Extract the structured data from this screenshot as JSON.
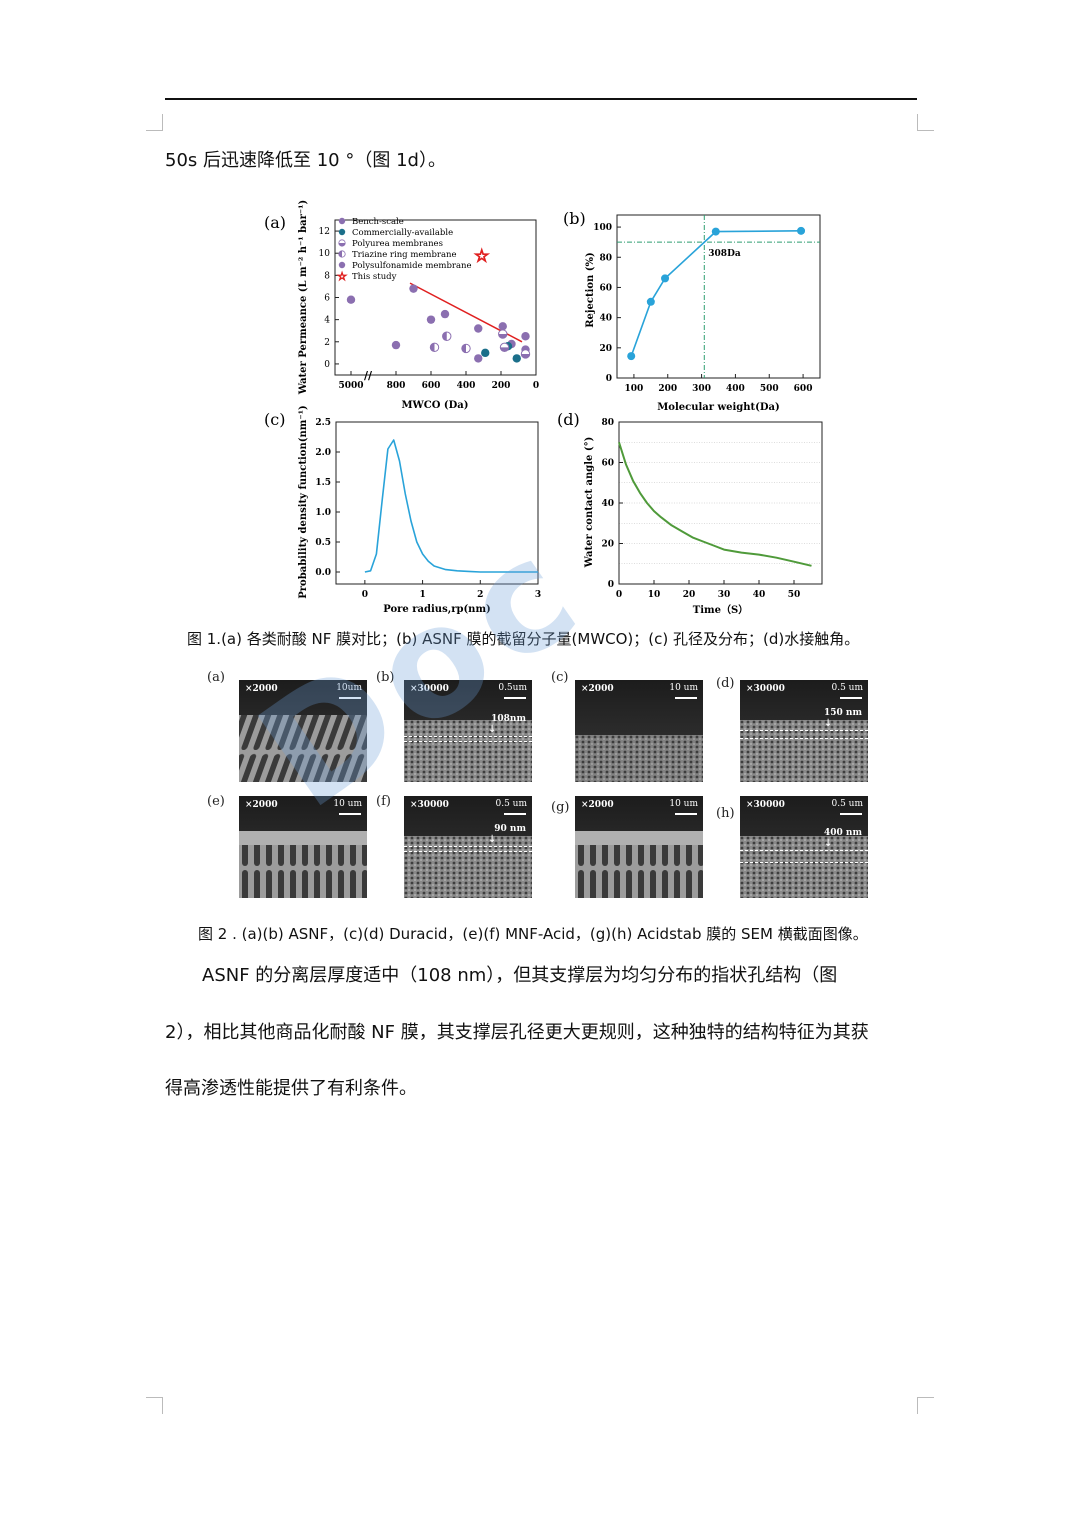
{
  "header_text": "50s 后迅速降低至 10 °（图 1d）。",
  "figure1": {
    "panel_labels": [
      "(a)",
      "(b)",
      "(c)",
      "(d)"
    ],
    "caption": "图 1.(a) 各类耐酸 NF 膜对比；(b) ASNF 膜的截留分子量(MWCO)；(c) 孔径及分布；(d)水接触角。"
  },
  "figure2": {
    "panels": [
      {
        "label": "(a)",
        "mag": "×2000",
        "scale": "10um",
        "annotation": ""
      },
      {
        "label": "(b)",
        "mag": "×30000",
        "scale": "0.5um",
        "annotation": "108nm"
      },
      {
        "label": "(c)",
        "mag": "×2000",
        "scale": "10 um",
        "annotation": ""
      },
      {
        "label": "(d)",
        "mag": "×30000",
        "scale": "0.5 um",
        "annotation": "150 nm"
      },
      {
        "label": "(e)",
        "mag": "×2000",
        "scale": "10 um",
        "annotation": ""
      },
      {
        "label": "(f)",
        "mag": "×30000",
        "scale": "0.5 um",
        "annotation": "90 nm"
      },
      {
        "label": "(g)",
        "mag": "×2000",
        "scale": "10 um",
        "annotation": ""
      },
      {
        "label": "(h)",
        "mag": "×30000",
        "scale": "0.5 um",
        "annotation": "400 nm"
      }
    ],
    "caption": "图 2 . (a)(b) ASNF，(c)(d) Duracid，(e)(f) MNF-Acid，(g)(h) Acidstab 膜的 SEM 横截面图像。"
  },
  "body_lines": [
    "ASNF 的分离层厚度适中（108 nm），但其支撑层为均匀分布的指状孔结构（图",
    "2），相比其他商品化耐酸 NF 膜，其支撑层孔径更大更规则，这种独特的结构特征为其获",
    "得高渗透性能提供了有利条件。"
  ],
  "watermark": "Doc",
  "chart_data": [
    {
      "type": "scatter",
      "panel": "(a)",
      "xlabel": "MWCO  (Da)",
      "ylabel": "Water Permeance (L m⁻² h⁻¹ bar⁻¹)",
      "x_tick_labels": [
        "5000",
        "800",
        "600",
        "400",
        "200",
        "0"
      ],
      "y_ticks": [
        0,
        2,
        4,
        6,
        8,
        10,
        12
      ],
      "ylim": [
        -1,
        13
      ],
      "legend_position": "top-left",
      "legend": [
        "Bench-scale",
        "Commercially-available",
        "Polyurea membranes",
        "Triazine ring membrane",
        "Polysulfonamide membrane",
        "This study"
      ],
      "series": [
        {
          "name": "Bench-scale",
          "color": "#8b6fb0",
          "points": [
            [
              5000,
              5.8
            ],
            [
              800,
              1.7
            ],
            [
              600,
              4.0
            ],
            [
              520,
              4.5
            ],
            [
              330,
              3.2
            ],
            [
              330,
              0.5
            ],
            [
              190,
              3.4
            ],
            [
              140,
              1.8
            ],
            [
              60,
              2.5
            ],
            [
              60,
              1.3
            ]
          ]
        },
        {
          "name": "Commercially-available",
          "color": "#1b6f8a",
          "points": [
            [
              290,
              1.0
            ],
            [
              160,
              1.6
            ],
            [
              110,
              0.5
            ]
          ]
        },
        {
          "name": "Polyurea membranes",
          "color": "#8b6fb0",
          "points": [
            [
              190,
              2.7
            ],
            [
              180,
              1.5
            ],
            [
              60,
              0.9
            ]
          ]
        },
        {
          "name": "Triazine ring membrane",
          "color": "#8b6fb0",
          "points": [
            [
              580,
              1.5
            ],
            [
              510,
              2.5
            ],
            [
              400,
              1.4
            ]
          ]
        },
        {
          "name": "Polysulfonamide membrane",
          "color": "#8b6fb0",
          "points": [
            [
              700,
              6.8
            ]
          ]
        },
        {
          "name": "This study",
          "color": "#e02020",
          "points": [
            [
              310,
              9.8
            ]
          ]
        }
      ],
      "trend_line": {
        "color": "#e02020",
        "from": [
          720,
          7.3
        ],
        "to": [
          80,
          2.0
        ]
      }
    },
    {
      "type": "line",
      "panel": "(b)",
      "xlabel": "Molecular weight(Da)",
      "ylabel": "Rejection (%)",
      "x_ticks": [
        100,
        200,
        300,
        400,
        500,
        600
      ],
      "y_ticks": [
        0,
        20,
        40,
        60,
        80,
        100
      ],
      "xlim": [
        50,
        650
      ],
      "ylim": [
        0,
        108
      ],
      "color": "#29a3d9",
      "x": [
        92,
        150,
        192,
        342,
        594
      ],
      "y": [
        14.5,
        50.5,
        66,
        97,
        97.5
      ],
      "reference": {
        "x": 308,
        "y": 90,
        "label": "308Da"
      }
    },
    {
      "type": "line",
      "panel": "(c)",
      "xlabel": "Pore radius,rp(nm)",
      "ylabel": "Probability density function(nm⁻¹)",
      "x_ticks": [
        0,
        1,
        2,
        3
      ],
      "y_ticks": [
        0.0,
        0.5,
        1.0,
        1.5,
        2.0,
        2.5
      ],
      "xlim": [
        -0.5,
        3
      ],
      "ylim": [
        -0.2,
        2.5
      ],
      "color": "#29a3d9",
      "x": [
        0.0,
        0.1,
        0.2,
        0.3,
        0.4,
        0.5,
        0.6,
        0.7,
        0.8,
        0.9,
        1.0,
        1.1,
        1.2,
        1.4,
        1.6,
        1.8,
        2.0,
        2.5,
        3.0
      ],
      "y": [
        0.0,
        0.02,
        0.3,
        1.2,
        2.05,
        2.2,
        1.85,
        1.3,
        0.85,
        0.5,
        0.3,
        0.18,
        0.1,
        0.04,
        0.02,
        0.01,
        0.0,
        0.0,
        0.0
      ]
    },
    {
      "type": "line",
      "panel": "(d)",
      "xlabel": "Time（S）",
      "ylabel": "Water contact angle (°)",
      "x_ticks": [
        0,
        10,
        20,
        30,
        40,
        50
      ],
      "y_ticks": [
        0,
        20,
        40,
        60,
        80
      ],
      "xlim": [
        0,
        58
      ],
      "ylim": [
        0,
        80
      ],
      "color": "#4f9a3a",
      "x": [
        0,
        2,
        4,
        6,
        8,
        10,
        12,
        15,
        18,
        21,
        24,
        27,
        30,
        35,
        40,
        45,
        50,
        55
      ],
      "y": [
        70,
        59,
        51,
        45,
        40,
        36,
        33,
        29,
        26,
        23,
        21,
        19,
        17,
        15.5,
        14.5,
        13,
        11,
        9
      ]
    }
  ]
}
